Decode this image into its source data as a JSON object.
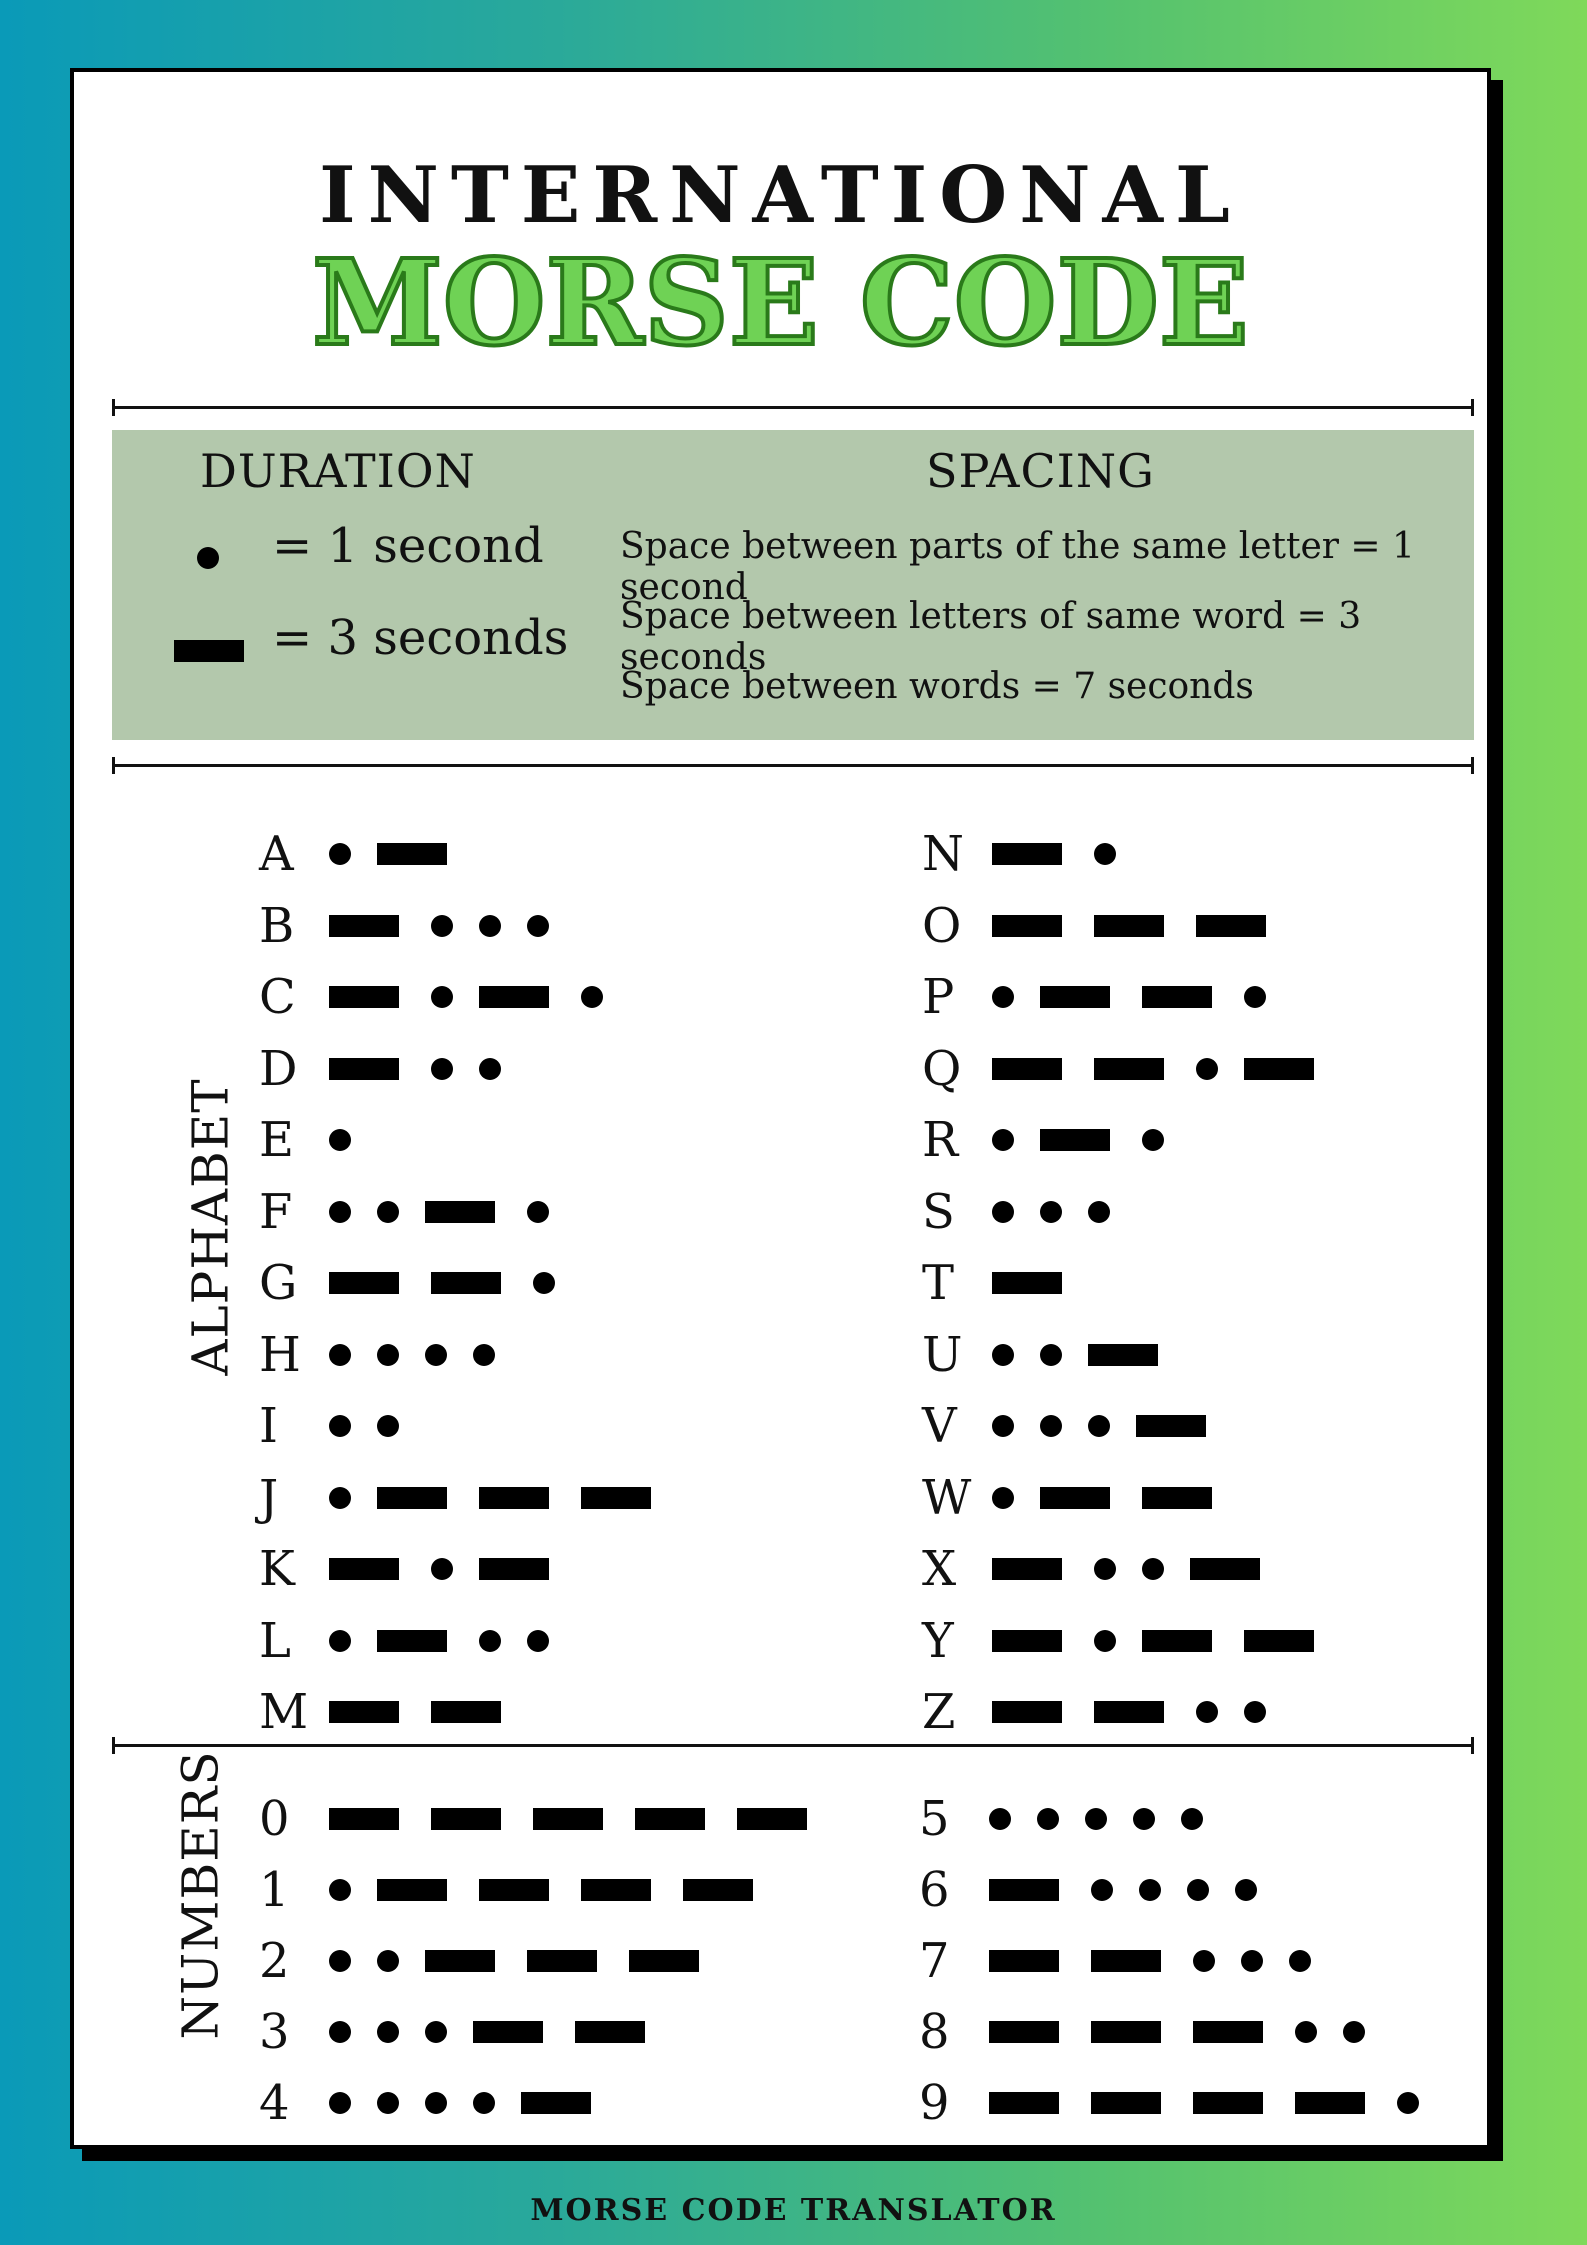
{
  "header": {
    "title_top": "INTERNATIONAL",
    "title_main": "MORSE CODE"
  },
  "duration": {
    "heading": "DURATION",
    "dot_label": "= 1 second",
    "dash_label": "= 3 seconds"
  },
  "spacing": {
    "heading": "SPACING",
    "lines": [
      "Space between parts of the same letter = 1 second",
      "Space between letters of same word = 3 seconds",
      "Space between words = 7 seconds"
    ]
  },
  "alphabet": {
    "label": "ALPHABET",
    "left": [
      {
        "char": "A",
        "code": ".-"
      },
      {
        "char": "B",
        "code": "-..."
      },
      {
        "char": "C",
        "code": "-.-."
      },
      {
        "char": "D",
        "code": "-.."
      },
      {
        "char": "E",
        "code": "."
      },
      {
        "char": "F",
        "code": "..-."
      },
      {
        "char": "G",
        "code": "--."
      },
      {
        "char": "H",
        "code": "...."
      },
      {
        "char": "I",
        "code": ".."
      },
      {
        "char": "J",
        "code": ".---"
      },
      {
        "char": "K",
        "code": "-.-"
      },
      {
        "char": "L",
        "code": ".-.."
      },
      {
        "char": "M",
        "code": "--"
      }
    ],
    "right": [
      {
        "char": "N",
        "code": "-."
      },
      {
        "char": "O",
        "code": "---"
      },
      {
        "char": "P",
        "code": ".--."
      },
      {
        "char": "Q",
        "code": "--.-"
      },
      {
        "char": "R",
        "code": ".-."
      },
      {
        "char": "S",
        "code": "..."
      },
      {
        "char": "T",
        "code": "-"
      },
      {
        "char": "U",
        "code": "..-"
      },
      {
        "char": "V",
        "code": "...-"
      },
      {
        "char": "W",
        "code": ".--"
      },
      {
        "char": "X",
        "code": "-..-"
      },
      {
        "char": "Y",
        "code": "-.--"
      },
      {
        "char": "Z",
        "code": "--.."
      }
    ]
  },
  "numbers": {
    "label": "NUMBERS",
    "left": [
      {
        "char": "0",
        "code": "-----"
      },
      {
        "char": "1",
        "code": ".----"
      },
      {
        "char": "2",
        "code": "..---"
      },
      {
        "char": "3",
        "code": "...--"
      },
      {
        "char": "4",
        "code": "....-"
      }
    ],
    "right": [
      {
        "char": "5",
        "code": "....."
      },
      {
        "char": "6",
        "code": "-...."
      },
      {
        "char": "7",
        "code": "--..."
      },
      {
        "char": "8",
        "code": "---.."
      },
      {
        "char": "9",
        "code": "----."
      }
    ]
  },
  "footer": {
    "text": "MORSE CODE TRANSLATOR"
  },
  "colors": {
    "title_green": "#6fd255",
    "title_outline": "#2a7a1a",
    "info_box": "#b3c8ac"
  }
}
